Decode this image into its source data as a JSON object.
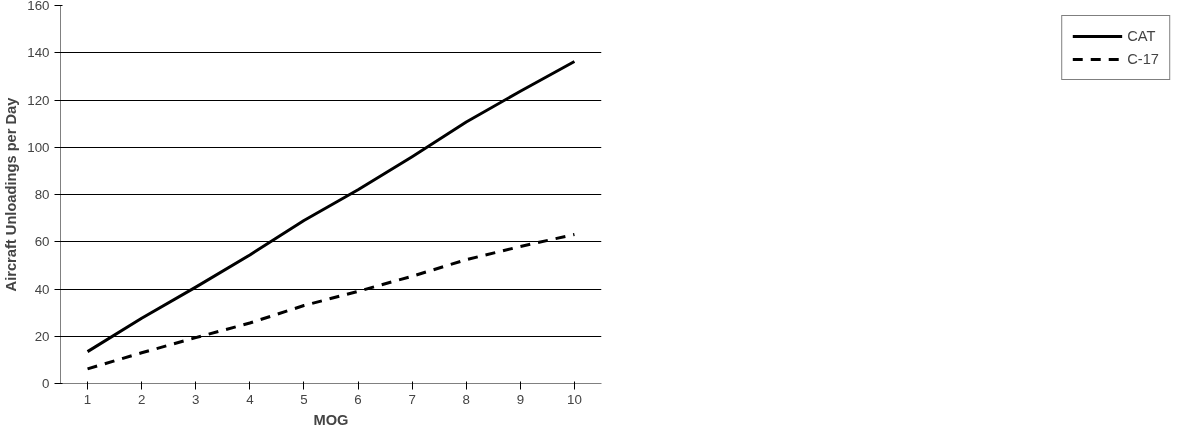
{
  "chart_data": {
    "type": "line",
    "xlabel": "MOG",
    "ylabel": "Aircraft Unloadings per Day",
    "categories": [
      "1",
      "2",
      "3",
      "4",
      "5",
      "6",
      "7",
      "8",
      "9",
      "10"
    ],
    "series": [
      {
        "name": "CAT",
        "color": "#000000",
        "line_style": "solid",
        "values": [
          13.5,
          27.6,
          40.8,
          54.4,
          69,
          82,
          96,
          110.7,
          123.7,
          136.3
        ]
      },
      {
        "name": "C-17",
        "color": "#000000",
        "line_style": "dashed",
        "values": [
          6.2,
          13,
          19.4,
          25.6,
          33,
          39,
          45.4,
          52.4,
          58,
          63.1
        ]
      }
    ],
    "ylim": [
      0,
      160
    ],
    "yticks": [
      0,
      20,
      40,
      60,
      80,
      100,
      120,
      140,
      160
    ],
    "grid": "y",
    "legend": "right",
    "marker": "none"
  }
}
